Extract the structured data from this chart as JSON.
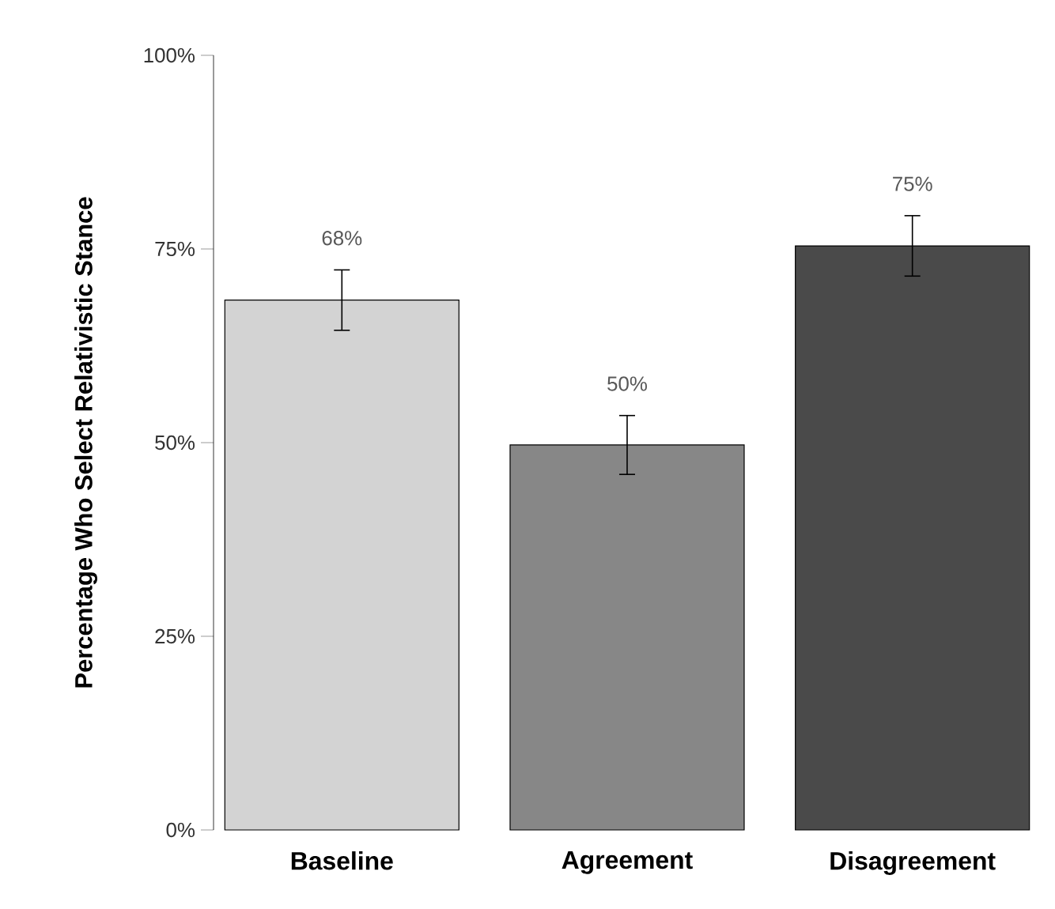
{
  "chart_data": {
    "type": "bar",
    "ylabel": "Percentage Who Select Relativistic Stance",
    "categories": [
      "Baseline",
      "Agreement",
      "Disagreement"
    ],
    "values": [
      68.4,
      49.7,
      75.4
    ],
    "errors": [
      3.9,
      3.8,
      3.9
    ],
    "value_labels": [
      "68%",
      "50%",
      "75%"
    ],
    "colors": [
      "#d3d3d3",
      "#878787",
      "#4a4a4a"
    ],
    "ylim": [
      0,
      100
    ],
    "yticks": [
      {
        "value": 0,
        "label": "0%"
      },
      {
        "value": 25,
        "label": "25%"
      },
      {
        "value": 50,
        "label": "50%"
      },
      {
        "value": 75,
        "label": "75%"
      },
      {
        "value": 100,
        "label": "100%"
      }
    ],
    "grid": false
  }
}
